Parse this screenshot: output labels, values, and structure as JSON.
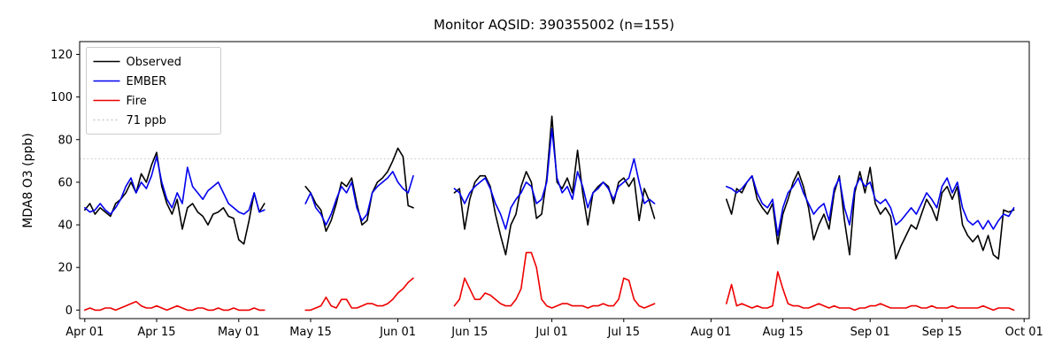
{
  "chart_data": {
    "type": "line",
    "title": "Monitor AQSID: 390355002 (n=155)",
    "ylabel": "MDA8 O3 (ppb)",
    "n": 155,
    "xlim_days": [
      -1,
      184
    ],
    "ylim": [
      -4,
      126
    ],
    "yticks": [
      0,
      20,
      40,
      60,
      80,
      100,
      120
    ],
    "xticks": [
      {
        "day": 0,
        "label": "Apr 01"
      },
      {
        "day": 14,
        "label": "Apr 15"
      },
      {
        "day": 30,
        "label": "May 01"
      },
      {
        "day": 44,
        "label": "May 15"
      },
      {
        "day": 61,
        "label": "Jun 01"
      },
      {
        "day": 75,
        "label": "Jun 15"
      },
      {
        "day": 91,
        "label": "Jul 01"
      },
      {
        "day": 105,
        "label": "Jul 15"
      },
      {
        "day": 122,
        "label": "Aug 01"
      },
      {
        "day": 136,
        "label": "Aug 15"
      },
      {
        "day": 153,
        "label": "Sep 01"
      },
      {
        "day": 167,
        "label": "Sep 15"
      },
      {
        "day": 183,
        "label": "Oct 01"
      }
    ],
    "threshold": {
      "value": 71,
      "label": "71 ppb",
      "color": "#c8c8c8",
      "style": "dotted"
    },
    "legend_position": "upper left",
    "grid": false,
    "series": [
      {
        "name": "Observed",
        "color": "#000000",
        "segments": [
          {
            "start_day": 0,
            "values": [
              47,
              50,
              45,
              48,
              46,
              44,
              50,
              52,
              55,
              60,
              55,
              64,
              60,
              68,
              74,
              58,
              50,
              45,
              52,
              38,
              48,
              50,
              46,
              44,
              40,
              45,
              46,
              48,
              44,
              43,
              33,
              31,
              42,
              55,
              46,
              50
            ]
          },
          {
            "start_day": 43,
            "values": [
              58,
              55,
              50,
              47,
              37,
              42,
              50,
              60,
              58,
              62,
              50,
              40,
              42,
              55,
              60,
              62,
              65,
              70,
              76,
              72,
              49,
              48
            ]
          },
          {
            "start_day": 72,
            "values": [
              55,
              57,
              38,
              52,
              60,
              63,
              63,
              58,
              45,
              35,
              26,
              40,
              45,
              58,
              65,
              60,
              43,
              45,
              62,
              91,
              60,
              57,
              62,
              55,
              75,
              55,
              40,
              55,
              58,
              60,
              58,
              50,
              60,
              62,
              58,
              62,
              42,
              57,
              51,
              43
            ]
          },
          {
            "start_day": 125,
            "values": [
              52,
              45,
              57,
              55,
              60,
              63,
              52,
              48,
              45,
              50,
              31,
              45,
              52,
              60,
              65,
              58,
              48,
              33,
              40,
              45,
              38,
              55,
              63,
              42,
              26,
              55,
              65,
              55,
              67,
              50,
              45,
              48,
              44,
              24,
              30,
              35,
              40,
              38,
              45,
              52,
              48,
              42,
              55,
              58,
              52,
              58,
              40,
              35,
              32,
              35,
              28,
              35,
              26,
              24,
              47,
              46,
              47
            ]
          }
        ]
      },
      {
        "name": "EMBER",
        "color": "#0000ee",
        "segments": [
          {
            "start_day": 0,
            "values": [
              48,
              46,
              47,
              50,
              47,
              45,
              48,
              52,
              58,
              62,
              55,
              60,
              57,
              63,
              72,
              60,
              52,
              48,
              55,
              50,
              67,
              58,
              55,
              52,
              56,
              58,
              60,
              55,
              50,
              48,
              46,
              45,
              47,
              55,
              46,
              47
            ]
          },
          {
            "start_day": 43,
            "values": [
              50,
              55,
              48,
              45,
              40,
              45,
              52,
              58,
              55,
              60,
              48,
              42,
              45,
              55,
              58,
              60,
              62,
              65,
              60,
              57,
              55,
              63
            ]
          },
          {
            "start_day": 72,
            "values": [
              57,
              55,
              50,
              55,
              58,
              60,
              62,
              57,
              50,
              45,
              38,
              48,
              52,
              55,
              60,
              58,
              50,
              52,
              60,
              85,
              62,
              55,
              58,
              52,
              65,
              58,
              48,
              55,
              57,
              60,
              57,
              52,
              58,
              60,
              62,
              71,
              60,
              50,
              52,
              50
            ]
          },
          {
            "start_day": 125,
            "values": [
              58,
              57,
              55,
              57,
              60,
              63,
              55,
              50,
              48,
              52,
              35,
              48,
              55,
              58,
              62,
              55,
              50,
              45,
              48,
              50,
              42,
              57,
              62,
              48,
              40,
              57,
              62,
              58,
              60,
              52,
              50,
              52,
              48,
              40,
              42,
              45,
              48,
              45,
              50,
              55,
              52,
              48,
              58,
              62,
              55,
              60,
              48,
              42,
              40,
              42,
              38,
              42,
              38,
              42,
              45,
              44,
              48
            ]
          }
        ]
      },
      {
        "name": "Fire",
        "color": "#ee0000",
        "segments": [
          {
            "start_day": 0,
            "values": [
              0,
              1,
              0,
              0,
              1,
              1,
              0,
              1,
              2,
              3,
              4,
              2,
              1,
              1,
              2,
              1,
              0,
              1,
              2,
              1,
              0,
              0,
              1,
              1,
              0,
              0,
              1,
              0,
              0,
              1,
              0,
              0,
              0,
              1,
              0,
              0
            ]
          },
          {
            "start_day": 43,
            "values": [
              0,
              0,
              1,
              2,
              6,
              2,
              1,
              5,
              5,
              1,
              1,
              2,
              3,
              3,
              2,
              2,
              3,
              5,
              8,
              10,
              13,
              15
            ]
          },
          {
            "start_day": 72,
            "values": [
              2,
              5,
              15,
              10,
              5,
              5,
              8,
              7,
              5,
              3,
              2,
              2,
              5,
              10,
              27,
              27,
              20,
              5,
              2,
              1,
              2,
              3,
              3,
              2,
              2,
              2,
              1,
              2,
              2,
              3,
              2,
              2,
              5,
              15,
              14,
              5,
              2,
              1,
              2,
              3
            ]
          },
          {
            "start_day": 125,
            "values": [
              3,
              12,
              2,
              3,
              2,
              1,
              2,
              1,
              1,
              2,
              18,
              10,
              3,
              2,
              2,
              1,
              1,
              2,
              3,
              2,
              1,
              2,
              1,
              1,
              1,
              0,
              1,
              1,
              2,
              2,
              3,
              2,
              1,
              1,
              1,
              1,
              2,
              2,
              1,
              1,
              2,
              1,
              1,
              1,
              2,
              1,
              1,
              1,
              1,
              1,
              2,
              1,
              0,
              1,
              1,
              1,
              0
            ]
          }
        ]
      }
    ]
  }
}
